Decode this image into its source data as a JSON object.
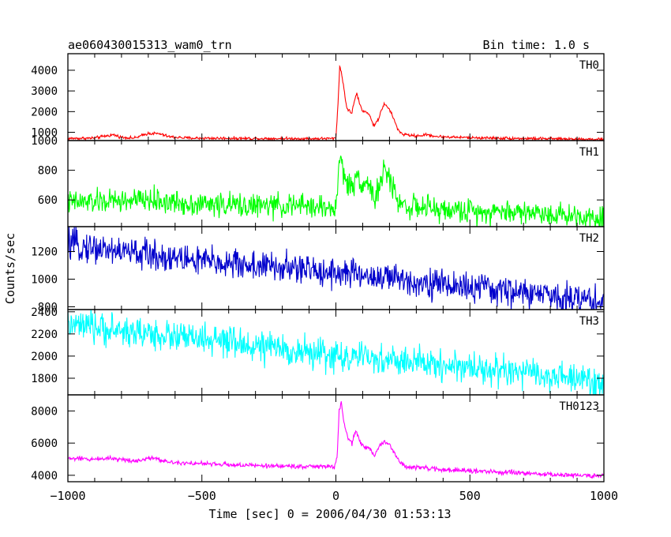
{
  "chart_data": {
    "type": "line",
    "title": "ae060430015313_wam0_trn",
    "subtitle": "Bin time: 1.0 s",
    "xlabel": "Time [sec] 0 = 2006/04/30 01:53:13",
    "ylabel": "Counts/sec",
    "xlim": [
      -1000,
      1000
    ],
    "x_ticks": [
      -1000,
      -500,
      0,
      500,
      1000
    ],
    "grid": false,
    "panels": [
      {
        "name": "TH0",
        "color": "#ff0000",
        "ylim": [
          600,
          4800
        ],
        "y_ticks": [
          1000,
          2000,
          3000,
          4000
        ],
        "noise": 35,
        "points": [
          [
            -1000,
            700
          ],
          [
            -900,
            720
          ],
          [
            -860,
            820
          ],
          [
            -830,
            880
          ],
          [
            -800,
            760
          ],
          [
            -750,
            720
          ],
          [
            -720,
            860
          ],
          [
            -700,
            950
          ],
          [
            -660,
            930
          ],
          [
            -620,
            780
          ],
          [
            -550,
            720
          ],
          [
            -300,
            700
          ],
          [
            -100,
            690
          ],
          [
            -10,
            700
          ],
          [
            0,
            720
          ],
          [
            8,
            2400
          ],
          [
            14,
            4200
          ],
          [
            20,
            3900
          ],
          [
            28,
            3300
          ],
          [
            40,
            2200
          ],
          [
            58,
            1900
          ],
          [
            70,
            2550
          ],
          [
            78,
            2900
          ],
          [
            88,
            2400
          ],
          [
            100,
            2000
          ],
          [
            115,
            2000
          ],
          [
            128,
            1800
          ],
          [
            140,
            1300
          ],
          [
            158,
            1600
          ],
          [
            170,
            2100
          ],
          [
            180,
            2350
          ],
          [
            195,
            2200
          ],
          [
            215,
            1700
          ],
          [
            230,
            1150
          ],
          [
            250,
            900
          ],
          [
            300,
            820
          ],
          [
            340,
            880
          ],
          [
            380,
            790
          ],
          [
            500,
            740
          ],
          [
            700,
            700
          ],
          [
            1000,
            660
          ]
        ]
      },
      {
        "name": "TH1",
        "color": "#00ff00",
        "ylim": [
          420,
          1000
        ],
        "y_ticks": [
          600,
          800,
          1000
        ],
        "noise": 40,
        "points": [
          [
            -1000,
            580
          ],
          [
            -850,
            590
          ],
          [
            -700,
            600
          ],
          [
            -600,
            580
          ],
          [
            -300,
            560
          ],
          [
            -100,
            560
          ],
          [
            -5,
            540
          ],
          [
            5,
            600
          ],
          [
            12,
            890
          ],
          [
            20,
            850
          ],
          [
            30,
            780
          ],
          [
            45,
            700
          ],
          [
            60,
            680
          ],
          [
            80,
            770
          ],
          [
            100,
            710
          ],
          [
            115,
            720
          ],
          [
            130,
            680
          ],
          [
            145,
            600
          ],
          [
            160,
            680
          ],
          [
            178,
            790
          ],
          [
            195,
            760
          ],
          [
            210,
            700
          ],
          [
            230,
            600
          ],
          [
            260,
            560
          ],
          [
            400,
            530
          ],
          [
            700,
            520
          ],
          [
            1000,
            480
          ]
        ]
      },
      {
        "name": "TH2",
        "color": "#0000cc",
        "ylim": [
          780,
          1380
        ],
        "y_ticks": [
          800,
          1000,
          1200
        ],
        "noise": 55,
        "points": [
          [
            -1000,
            1250
          ],
          [
            -500,
            1130
          ],
          [
            0,
            1050
          ],
          [
            500,
            940
          ],
          [
            1000,
            840
          ]
        ]
      },
      {
        "name": "TH3",
        "color": "#00ffff",
        "ylim": [
          1650,
          2420
        ],
        "y_ticks": [
          1800,
          2000,
          2200,
          2400
        ],
        "noise": 70,
        "points": [
          [
            -1000,
            2280
          ],
          [
            -500,
            2150
          ],
          [
            0,
            2000
          ],
          [
            500,
            1900
          ],
          [
            1000,
            1760
          ]
        ]
      },
      {
        "name": "TH0123",
        "color": "#ff00ff",
        "ylim": [
          3600,
          9000
        ],
        "y_ticks": [
          4000,
          6000,
          8000
        ],
        "noise": 70,
        "points": [
          [
            -1000,
            5050
          ],
          [
            -900,
            5000
          ],
          [
            -850,
            5080
          ],
          [
            -800,
            4980
          ],
          [
            -750,
            4900
          ],
          [
            -700,
            5050
          ],
          [
            -670,
            5100
          ],
          [
            -640,
            4850
          ],
          [
            -500,
            4720
          ],
          [
            -300,
            4600
          ],
          [
            -100,
            4550
          ],
          [
            -5,
            4530
          ],
          [
            5,
            5200
          ],
          [
            12,
            8000
          ],
          [
            20,
            8500
          ],
          [
            30,
            7200
          ],
          [
            45,
            6300
          ],
          [
            60,
            6000
          ],
          [
            75,
            6800
          ],
          [
            90,
            6100
          ],
          [
            110,
            5700
          ],
          [
            125,
            5650
          ],
          [
            145,
            5200
          ],
          [
            165,
            5900
          ],
          [
            180,
            6150
          ],
          [
            200,
            5900
          ],
          [
            220,
            5300
          ],
          [
            240,
            4800
          ],
          [
            260,
            4550
          ],
          [
            400,
            4350
          ],
          [
            600,
            4200
          ],
          [
            800,
            4050
          ],
          [
            1000,
            3950
          ]
        ]
      }
    ]
  }
}
